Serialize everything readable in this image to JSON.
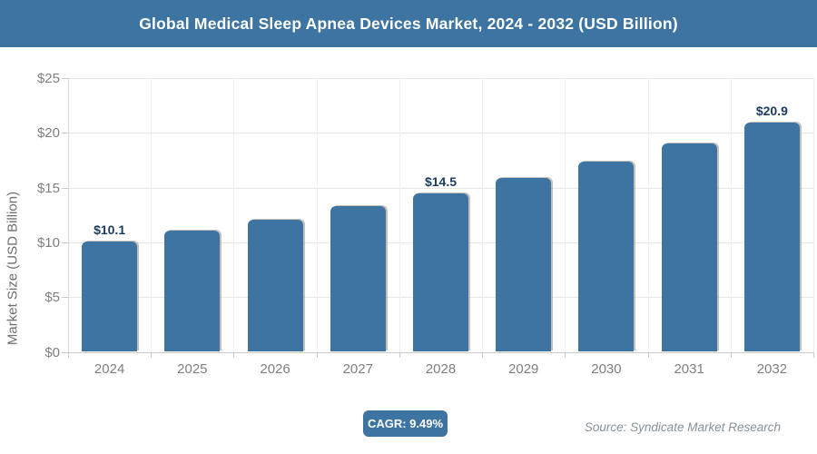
{
  "header": {
    "title": "Global Medical Sleep Apnea Devices Market, 2024 - 2032 (USD Billion)"
  },
  "chart_data": {
    "type": "bar",
    "title": "Global Medical Sleep Apnea Devices Market, 2024 - 2032 (USD Billion)",
    "categories": [
      "2024",
      "2025",
      "2026",
      "2027",
      "2028",
      "2029",
      "2030",
      "2031",
      "2032"
    ],
    "values": [
      10.1,
      11.1,
      12.1,
      13.3,
      14.5,
      15.9,
      17.4,
      19.0,
      20.9
    ],
    "labeled_points": [
      {
        "index": 0,
        "label": "$10.1"
      },
      {
        "index": 4,
        "label": "$14.5"
      },
      {
        "index": 8,
        "label": "$20.9"
      }
    ],
    "xlabel": "",
    "ylabel": "Market Size (USD Billion)",
    "ylim": [
      0,
      25
    ],
    "ytick_step": 5,
    "ytick_labels": [
      "$0",
      "$5",
      "$10",
      "$15",
      "$20",
      "$25"
    ],
    "grid": true,
    "legend": "none",
    "bar_color": "#3d74a1"
  },
  "footer": {
    "cagr_label": "CAGR: 9.49%",
    "source": "Source: Syndicate Market Research"
  },
  "colors": {
    "accent": "#3d74a1",
    "bar": "#3d74a1",
    "value_label": "#1b3a5f",
    "axis_text": "#7f7f7f",
    "gridline": "#e7e7e7"
  }
}
